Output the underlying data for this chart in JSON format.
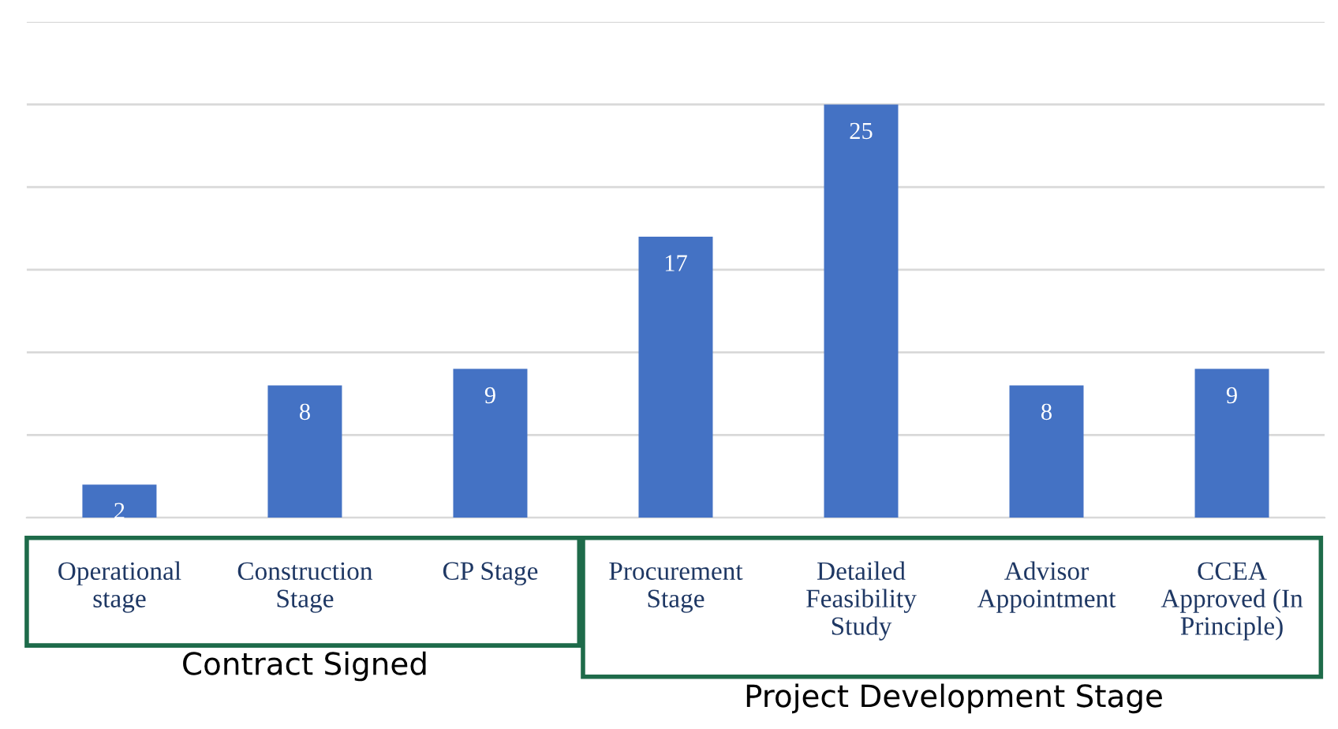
{
  "chart_data": {
    "type": "bar",
    "categories": [
      "Operational\nstage",
      "Construction\nStage",
      "CP Stage",
      "Procurement\nStage",
      "Detailed\nFeasibility\nStudy",
      "Advisor\nAppointment",
      "CCEA\nApproved (In\nPrinciple)"
    ],
    "values": [
      2,
      8,
      9,
      17,
      25,
      8,
      9
    ],
    "color": "#4472c4",
    "ylim": [
      0,
      30
    ],
    "yticks": [
      {
        "value": 0,
        "label": null
      },
      {
        "value": 5,
        "label": null
      },
      {
        "value": 10,
        "label": null
      },
      {
        "value": 15,
        "label": null
      },
      {
        "value": 20,
        "label": null
      },
      {
        "value": 25,
        "label": null
      },
      {
        "value": 30,
        "label": null
      }
    ],
    "tick_labels": "x",
    "grid": "y",
    "data_labels": true,
    "annotations": [
      "Contract Signed",
      "Project Development Stage"
    ]
  }
}
